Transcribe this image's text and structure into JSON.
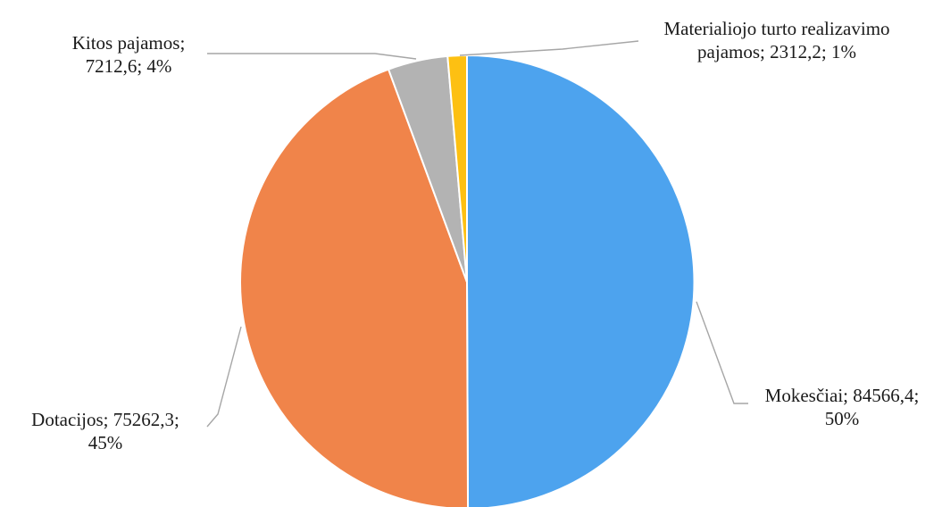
{
  "chart_data": {
    "type": "pie",
    "title": "",
    "series": [
      {
        "slices": [
          {
            "name": "Mokesčiai",
            "value": 84566.4,
            "percent": 50,
            "label_lines": [
              "Mokesčiai; 84566,4;",
              "50%"
            ],
            "color": "#4da3ee"
          },
          {
            "name": "Dotacijos",
            "value": 75262.3,
            "percent": 45,
            "label_lines": [
              "Dotacijos; 75262,3;",
              "45%"
            ],
            "color": "#f0844a"
          },
          {
            "name": "Kitos pajamos",
            "value": 7212.6,
            "percent": 4,
            "label_lines": [
              "Kitos pajamos;",
              "7212,6; 4%"
            ],
            "color": "#b3b3b3"
          },
          {
            "name": "Materialiojo turto realizavimo pajamos",
            "value": 2312.2,
            "percent": 1,
            "label_lines": [
              "Materialiojo turto realizavimo",
              "pajamos; 2312,2; 1%"
            ],
            "color": "#fdc012"
          }
        ]
      }
    ],
    "legend": "none",
    "start_angle": "12 o'clock",
    "direction": "clockwise"
  }
}
